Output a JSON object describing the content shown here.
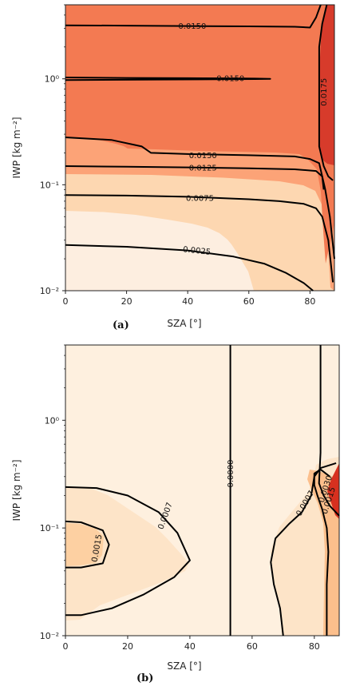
{
  "chart_data": [
    {
      "type": "contour",
      "panel_label": "(a)",
      "xlabel": "SZA [°]",
      "ylabel": "IWP [kg m⁻²]",
      "xlim": [
        0,
        88
      ],
      "ylim": [
        0.01,
        5.0
      ],
      "yscale": "log",
      "xticks": [
        0,
        20,
        40,
        60,
        80
      ],
      "yticks": [
        {
          "value": 0.01,
          "label": "10⁻²"
        },
        {
          "value": 0.1,
          "label": "10⁻¹"
        },
        {
          "value": 1,
          "label": "10⁰"
        }
      ],
      "fill_colors": [
        "#fdeee0",
        "#fdd7b1",
        "#fca377",
        "#f37a52",
        "#d73b2b"
      ],
      "contours": [
        {
          "level": "0.0025",
          "points": [
            [
              0,
              0.027
            ],
            [
              20,
              0.026
            ],
            [
              40,
              0.024
            ],
            [
              55,
              0.021
            ],
            [
              65,
              0.018
            ],
            [
              72,
              0.0148
            ],
            [
              78,
              0.0118
            ],
            [
              81,
              0.01
            ]
          ]
        },
        {
          "level": "0.0075",
          "points": [
            [
              0,
              0.08
            ],
            [
              20,
              0.079
            ],
            [
              40,
              0.077
            ],
            [
              60,
              0.073
            ],
            [
              70,
              0.07
            ],
            [
              78,
              0.066
            ],
            [
              82,
              0.06
            ],
            [
              84,
              0.05
            ],
            [
              86,
              0.03
            ],
            [
              87.5,
              0.012
            ]
          ]
        },
        {
          "level": "0.0125",
          "points": [
            [
              0,
              0.15
            ],
            [
              20,
              0.148
            ],
            [
              40,
              0.146
            ],
            [
              60,
              0.143
            ],
            [
              75,
              0.14
            ],
            [
              82,
              0.135
            ],
            [
              84,
              0.12
            ],
            [
              85,
              0.09
            ],
            [
              86.5,
              0.05
            ],
            [
              88,
              0.02
            ]
          ]
        },
        {
          "level": "0.0150",
          "points": [
            [
              0,
              0.28
            ],
            [
              15,
              0.265
            ],
            [
              25,
              0.23
            ],
            [
              28,
              0.2
            ],
            [
              40,
              0.195
            ],
            [
              60,
              0.19
            ],
            [
              75,
              0.185
            ],
            [
              80,
              0.175
            ],
            [
              83,
              0.16
            ],
            [
              84,
              0.12
            ],
            [
              84.5,
              0.09
            ]
          ]
        },
        {
          "level": "0.0150",
          "points": [
            [
              0,
              1.03
            ],
            [
              20,
              1.02
            ],
            [
              40,
              1.015
            ],
            [
              55,
              1.01
            ],
            [
              62,
              1.005
            ],
            [
              67,
              1.0
            ],
            [
              62,
              0.995
            ],
            [
              50,
              0.99
            ],
            [
              30,
              0.985
            ],
            [
              0,
              0.975
            ]
          ]
        },
        {
          "level": "0.0150",
          "points": [
            [
              0,
              3.2
            ],
            [
              20,
              3.18
            ],
            [
              40,
              3.15
            ],
            [
              60,
              3.13
            ],
            [
              75,
              3.1
            ],
            [
              80,
              3.05
            ],
            [
              82,
              3.8
            ],
            [
              83.5,
              5.0
            ]
          ]
        },
        {
          "level": "0.0175",
          "points": [
            [
              85.5,
              5.0
            ],
            [
              84,
              3.3
            ],
            [
              83,
              2.0
            ],
            [
              83,
              1.0
            ],
            [
              83,
              0.4
            ],
            [
              83,
              0.23
            ],
            [
              84.5,
              0.15
            ],
            [
              86,
              0.12
            ],
            [
              87.5,
              0.11
            ]
          ]
        }
      ],
      "contour_labels": [
        {
          "text": "0.0150",
          "x": 41.5,
          "y": 3.15,
          "rotate": 0
        },
        {
          "text": "0.0150",
          "x": 54,
          "y": 1.015,
          "rotate": 0
        },
        {
          "text": "0.0150",
          "x": 45,
          "y": 0.19,
          "rotate": 0
        },
        {
          "text": "0.0125",
          "x": 45,
          "y": 0.145,
          "rotate": 0
        },
        {
          "text": "0.0075",
          "x": 44,
          "y": 0.075,
          "rotate": 0
        },
        {
          "text": "0.0025",
          "x": 43,
          "y": 0.024,
          "rotate": 6
        },
        {
          "text": "0.0175",
          "x": 84.5,
          "y": 0.75,
          "rotate": -90
        }
      ]
    },
    {
      "type": "contour",
      "panel_label": "(b)",
      "xlabel": "SZA [°]",
      "ylabel": "IWP [kg m⁻²]",
      "xlim": [
        0,
        88
      ],
      "ylim": [
        0.01,
        5.0
      ],
      "yscale": "log",
      "xticks": [
        0,
        20,
        40,
        60,
        80
      ],
      "yticks": [
        {
          "value": 0.01,
          "label": "10⁻²"
        },
        {
          "value": 0.1,
          "label": "10⁻¹"
        },
        {
          "value": 1,
          "label": "10⁰"
        }
      ],
      "fill_colors": [
        "#fef0df",
        "#fde4c8",
        "#fdd0a2",
        "#fcbf8c",
        "#d7301f"
      ],
      "contours": [
        {
          "level": "0.0007",
          "points": [
            [
              0,
              0.24
            ],
            [
              10,
              0.235
            ],
            [
              20,
              0.2
            ],
            [
              30,
              0.14
            ],
            [
              36,
              0.09
            ],
            [
              40,
              0.05
            ],
            [
              35,
              0.035
            ],
            [
              25,
              0.024
            ],
            [
              15,
              0.018
            ],
            [
              5,
              0.0155
            ],
            [
              0,
              0.0155
            ]
          ]
        },
        {
          "level": "0.0015",
          "points": [
            [
              0,
              0.115
            ],
            [
              5,
              0.113
            ],
            [
              12,
              0.095
            ],
            [
              14,
              0.07
            ],
            [
              12,
              0.047
            ],
            [
              5,
              0.043
            ],
            [
              0,
              0.043
            ]
          ]
        },
        {
          "level": "0.0000",
          "points": [
            [
              53,
              5.0
            ],
            [
              53,
              0.01
            ]
          ]
        },
        {
          "level": "0.0007",
          "points": [
            [
              70,
              0.01
            ],
            [
              69,
              0.018
            ],
            [
              67,
              0.03
            ],
            [
              66,
              0.048
            ],
            [
              67.5,
              0.08
            ],
            [
              72,
              0.11
            ],
            [
              76,
              0.14
            ],
            [
              79,
              0.2
            ],
            [
              80,
              0.3
            ],
            [
              82,
              0.36
            ],
            [
              87,
              0.4
            ]
          ]
        },
        {
          "level": "0.0015",
          "points": [
            [
              84,
              0.01
            ],
            [
              84,
              0.03
            ],
            [
              84.5,
              0.06
            ],
            [
              84,
              0.1
            ],
            [
              82.5,
              0.15
            ],
            [
              81,
              0.2
            ],
            [
              80,
              0.25
            ],
            [
              80,
              0.32
            ],
            [
              82,
              0.35
            ],
            [
              85,
              0.3
            ]
          ]
        },
        {
          "level": "0.0030",
          "points": [
            [
              82,
              5.0
            ],
            [
              82,
              1.0
            ],
            [
              82,
              0.5
            ],
            [
              81.5,
              0.26
            ],
            [
              83,
              0.2
            ],
            [
              85,
              0.16
            ],
            [
              88,
              0.13
            ]
          ]
        }
      ],
      "contour_labels": [
        {
          "text": "0.0015",
          "x": 10,
          "y": 0.065,
          "rotate": -80
        },
        {
          "text": "0.0007",
          "x": 32,
          "y": 0.13,
          "rotate": -70
        },
        {
          "text": "0.0000",
          "x": 53,
          "y": 0.32,
          "rotate": -90
        },
        {
          "text": "0.0007",
          "x": 77,
          "y": 0.17,
          "rotate": -60
        },
        {
          "text": "0.0015",
          "x": 84.5,
          "y": 0.18,
          "rotate": -72
        },
        {
          "text": "0.0030",
          "x": 83.5,
          "y": 0.23,
          "rotate": -72
        }
      ]
    }
  ]
}
